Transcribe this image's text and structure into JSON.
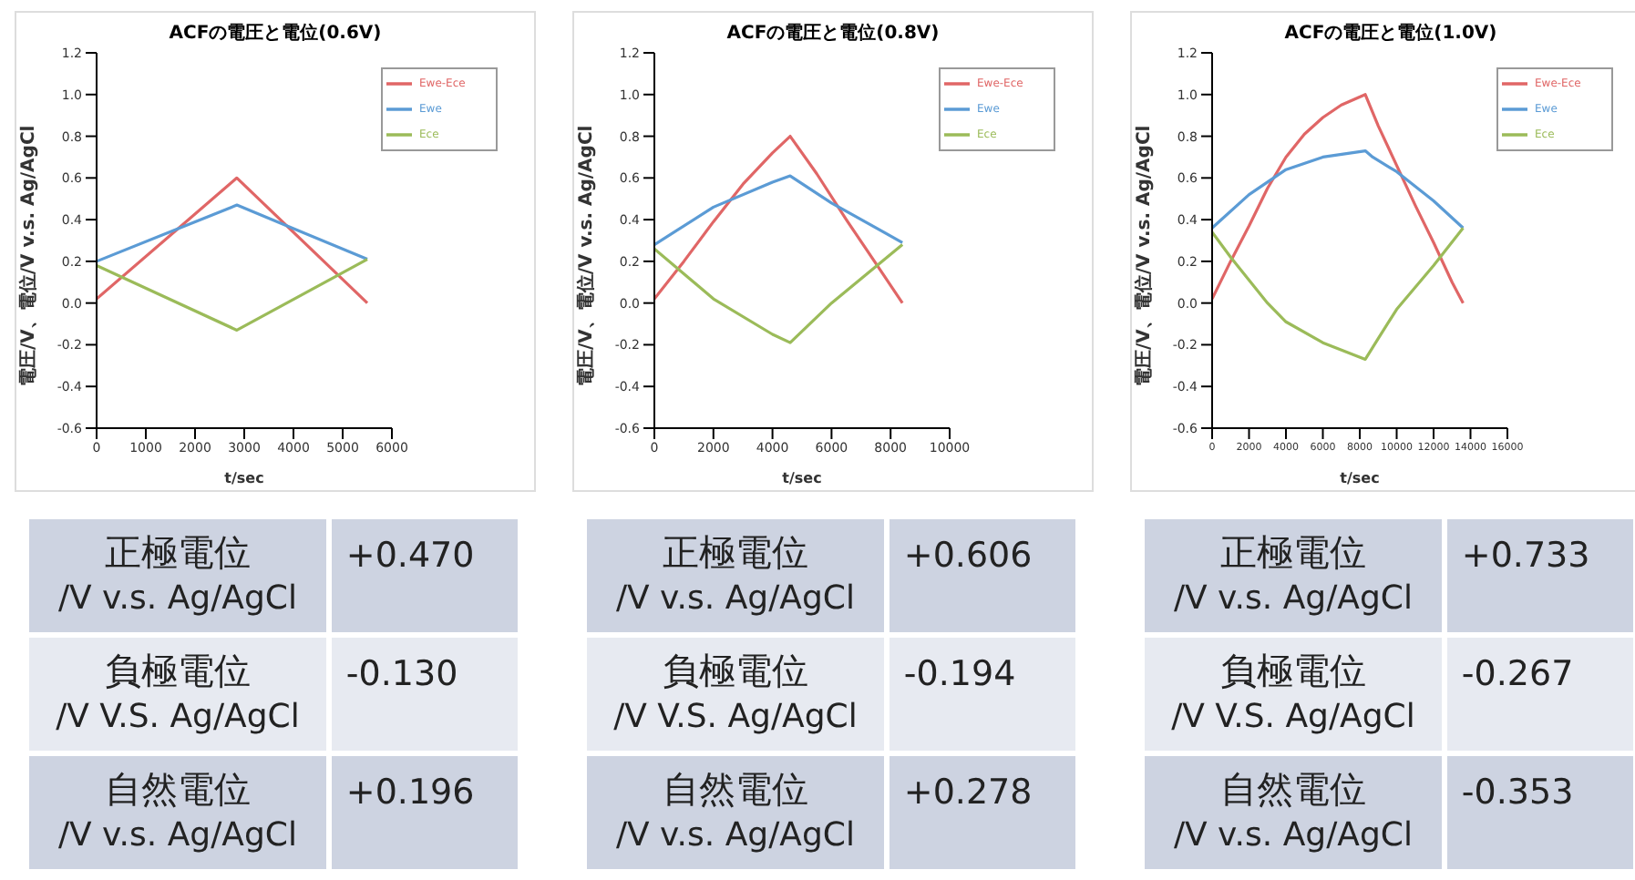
{
  "chart_data": [
    {
      "type": "line",
      "title": "ACFの電圧と電位(0.6V)",
      "xlabel": "t/sec",
      "ylabel": "電圧/V、電位/V v.s. Ag/AgCl",
      "xlim": [
        0,
        6000
      ],
      "xticks": [
        0,
        1000,
        2000,
        3000,
        4000,
        5000,
        6000
      ],
      "ylim": [
        -0.6,
        1.2
      ],
      "yticks": [
        {
          "value": -0.6,
          "label": "-0.6"
        },
        {
          "value": -0.4,
          "label": "-0.4"
        },
        {
          "value": -0.2,
          "label": "-0.2"
        },
        {
          "value": 0,
          "label": "0.0"
        },
        {
          "value": 0.2,
          "label": "0.2"
        },
        {
          "value": 0.4,
          "label": "0.4"
        },
        {
          "value": 0.6,
          "label": "0.6"
        },
        {
          "value": 0.8,
          "label": "0.8"
        },
        {
          "value": 1,
          "label": "1.0"
        },
        {
          "value": 1.2,
          "label": "1.2"
        }
      ],
      "grid": false,
      "legend": "top right",
      "series": [
        {
          "name": "Ewe-Ece",
          "color": "#e06666",
          "x": [
            0,
            2850,
            5500
          ],
          "values": [
            0.02,
            0.6,
            0.0
          ]
        },
        {
          "name": "Ewe",
          "color": "#5b9bd5",
          "x": [
            0,
            2850,
            5500
          ],
          "values": [
            0.2,
            0.47,
            0.21
          ]
        },
        {
          "name": "Ece",
          "color": "#9bbb59",
          "x": [
            0,
            2850,
            5500
          ],
          "values": [
            0.18,
            -0.13,
            0.21
          ]
        }
      ]
    },
    {
      "type": "line",
      "title": "ACFの電圧と電位(0.8V)",
      "xlabel": "t/sec",
      "ylabel": "電圧/V、電位/V v.s. Ag/AgCl",
      "xlim": [
        0,
        10000
      ],
      "xticks": [
        0,
        2000,
        4000,
        6000,
        8000,
        10000
      ],
      "ylim": [
        -0.6,
        1.2
      ],
      "yticks": [
        {
          "value": -0.6,
          "label": "-0.6"
        },
        {
          "value": -0.4,
          "label": "-0.4"
        },
        {
          "value": -0.2,
          "label": "-0.2"
        },
        {
          "value": 0,
          "label": "0.0"
        },
        {
          "value": 0.2,
          "label": "0.2"
        },
        {
          "value": 0.4,
          "label": "0.4"
        },
        {
          "value": 0.6,
          "label": "0.6"
        },
        {
          "value": 0.8,
          "label": "0.8"
        },
        {
          "value": 1,
          "label": "1.0"
        },
        {
          "value": 1.2,
          "label": "1.2"
        }
      ],
      "grid": false,
      "legend": "top right",
      "series": [
        {
          "name": "Ewe-Ece",
          "color": "#e06666",
          "x": [
            0,
            1000,
            2000,
            3000,
            4000,
            4600,
            5500,
            6500,
            7500,
            8400
          ],
          "values": [
            0.02,
            0.2,
            0.39,
            0.57,
            0.72,
            0.8,
            0.62,
            0.4,
            0.19,
            0.0
          ]
        },
        {
          "name": "Ewe",
          "color": "#5b9bd5",
          "x": [
            0,
            2000,
            4000,
            4600,
            6000,
            8400
          ],
          "values": [
            0.28,
            0.46,
            0.58,
            0.61,
            0.48,
            0.29
          ]
        },
        {
          "name": "Ece",
          "color": "#9bbb59",
          "x": [
            0,
            2000,
            4000,
            4600,
            6000,
            8400
          ],
          "values": [
            0.26,
            0.02,
            -0.15,
            -0.19,
            0.0,
            0.28
          ]
        }
      ]
    },
    {
      "type": "line",
      "title": "ACFの電圧と電位(1.0V)",
      "xlabel": "t/sec",
      "ylabel": "電圧/V、電位/V v.s. Ag/AgCl",
      "xlim": [
        0,
        16000
      ],
      "xticks": [
        0,
        2000,
        4000,
        6000,
        8000,
        10000,
        12000,
        14000,
        16000
      ],
      "ylim": [
        -0.6,
        1.2
      ],
      "yticks": [
        {
          "value": -0.6,
          "label": "-0.6"
        },
        {
          "value": -0.4,
          "label": "-0.4"
        },
        {
          "value": -0.2,
          "label": "-0.2"
        },
        {
          "value": 0,
          "label": "0.0"
        },
        {
          "value": 0.2,
          "label": "0.2"
        },
        {
          "value": 0.4,
          "label": "0.4"
        },
        {
          "value": 0.6,
          "label": "0.6"
        },
        {
          "value": 0.8,
          "label": "0.8"
        },
        {
          "value": 1,
          "label": "1.0"
        },
        {
          "value": 1.2,
          "label": "1.2"
        }
      ],
      "grid": false,
      "legend": "top right",
      "series": [
        {
          "name": "Ewe-Ece",
          "color": "#e06666",
          "x": [
            0,
            1000,
            2000,
            3000,
            4000,
            5000,
            6000,
            7000,
            8300,
            9000,
            10000,
            11000,
            12000,
            13000,
            13600
          ],
          "values": [
            0.02,
            0.2,
            0.37,
            0.55,
            0.7,
            0.81,
            0.89,
            0.95,
            1.0,
            0.85,
            0.66,
            0.47,
            0.29,
            0.1,
            0.0
          ]
        },
        {
          "name": "Ewe",
          "color": "#5b9bd5",
          "x": [
            0,
            2000,
            4000,
            6000,
            8300,
            8700,
            10000,
            12000,
            13600
          ],
          "values": [
            0.36,
            0.52,
            0.64,
            0.7,
            0.73,
            0.7,
            0.63,
            0.49,
            0.36
          ]
        },
        {
          "name": "Ece",
          "color": "#9bbb59",
          "x": [
            0,
            1000,
            2000,
            3000,
            4000,
            6000,
            8300,
            9000,
            10000,
            12000,
            13600
          ],
          "values": [
            0.34,
            0.22,
            0.11,
            0.0,
            -0.09,
            -0.19,
            -0.27,
            -0.17,
            -0.03,
            0.18,
            0.36
          ]
        }
      ]
    },
    {
      "type": "other",
      "annotations": [
        "正極電位",
        "/V v.s. Ag/AgCl",
        "+0.470",
        "負極電位",
        "/V V.S. Ag/AgCl",
        "-0.130",
        "自然電位",
        "/V v.s. Ag/AgCl",
        "+0.196"
      ]
    },
    {
      "type": "other",
      "annotations": [
        "正極電位",
        "/V v.s. Ag/AgCl",
        "+0.606",
        "負極電位",
        "/V V.S. Ag/AgCl",
        "-0.194",
        "自然電位",
        "/V v.s. Ag/AgCl",
        "+0.278"
      ]
    },
    {
      "type": "other",
      "annotations": [
        "正極電位",
        "/V v.s. Ag/AgCl",
        "+0.733",
        "負極電位",
        "/V V.S. Ag/AgCl",
        "-0.267",
        "自然電位",
        "/V v.s. Ag/AgCl",
        "-0.353"
      ]
    }
  ]
}
